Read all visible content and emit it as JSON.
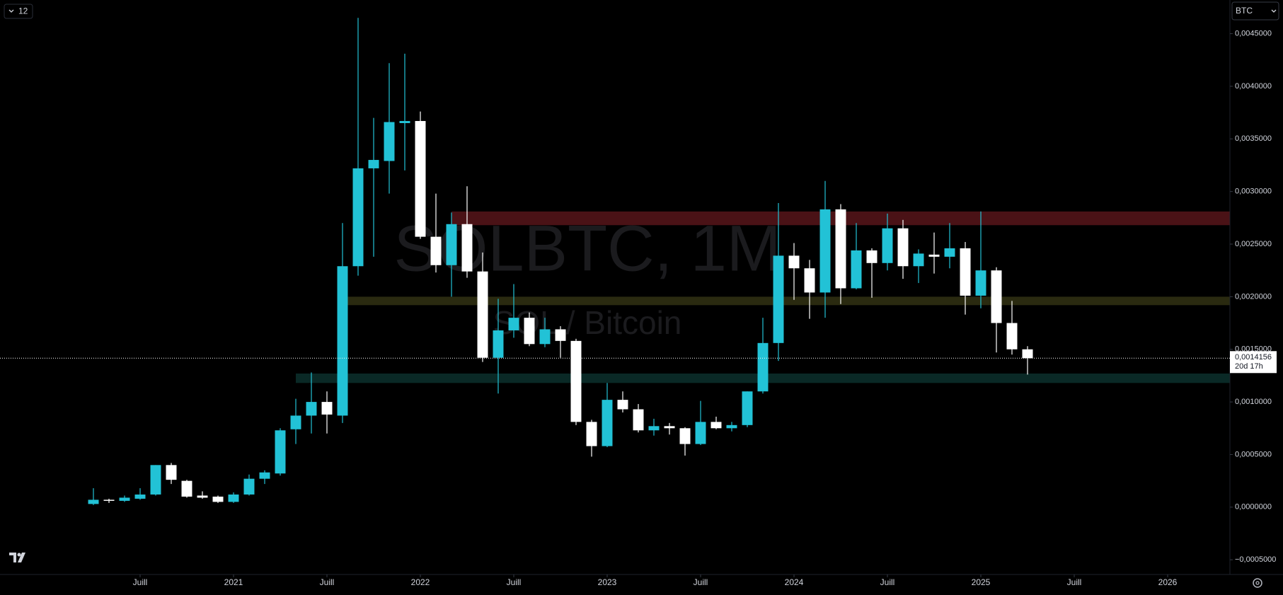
{
  "chart_data": {
    "type": "candlestick",
    "symbol": "BTC",
    "interval_button": "12",
    "watermark_title": "SOLBTC, 1M",
    "watermark_subtitle": "SOL / Bitcoin",
    "up_color": "#22c2d6",
    "down_color": "#ffffff",
    "x": [
      "2020-04",
      "2020-05",
      "2020-06",
      "2020-07",
      "2020-08",
      "2020-09",
      "2020-10",
      "2020-11",
      "2020-12",
      "2021-01",
      "2021-02",
      "2021-03",
      "2021-04",
      "2021-05",
      "2021-06",
      "2021-07",
      "2021-08",
      "2021-09",
      "2021-10",
      "2021-11",
      "2021-12",
      "2022-01",
      "2022-02",
      "2022-03",
      "2022-04",
      "2022-05",
      "2022-06",
      "2022-07",
      "2022-08",
      "2022-09",
      "2022-10",
      "2022-11",
      "2022-12",
      "2023-01",
      "2023-02",
      "2023-03",
      "2023-04",
      "2023-05",
      "2023-06",
      "2023-07",
      "2023-08",
      "2023-09",
      "2023-10",
      "2023-11",
      "2023-12",
      "2024-01",
      "2024-02",
      "2024-03",
      "2024-04",
      "2024-05",
      "2024-06",
      "2024-07",
      "2024-08",
      "2024-09",
      "2024-10",
      "2024-11",
      "2024-12",
      "2025-01",
      "2025-02",
      "2025-03",
      "2025-04"
    ],
    "open": [
      3e-05,
      7e-05,
      6e-05,
      8e-05,
      0.00012,
      0.0004,
      0.00025,
      0.00011,
      0.0001,
      5e-05,
      0.00012,
      0.00027,
      0.00032,
      0.00074,
      0.00087,
      0.001,
      0.00087,
      0.00229,
      0.00322,
      0.00329,
      0.00365,
      0.00367,
      0.00257,
      0.0023,
      0.00269,
      0.00224,
      0.00142,
      0.00168,
      0.0018,
      0.00155,
      0.00169,
      0.00158,
      0.00081,
      0.00058,
      0.00102,
      0.00093,
      0.00073,
      0.00077,
      0.00075,
      0.0006,
      0.00081,
      0.00075,
      0.00078,
      0.0011,
      0.00156,
      0.00239,
      0.00227,
      0.00204,
      0.00283,
      0.00208,
      0.00244,
      0.00232,
      0.00265,
      0.00229,
      0.0024,
      0.00238,
      0.00246,
      0.00201,
      0.00225,
      0.00175,
      0.0015
    ],
    "high": [
      0.00018,
      8e-05,
      0.00011,
      0.00018,
      0.0004,
      0.00042,
      0.00026,
      0.00015,
      0.00011,
      0.00014,
      0.00031,
      0.00035,
      0.00075,
      0.00103,
      0.00128,
      0.0011,
      0.0027,
      0.00465,
      0.0037,
      0.00422,
      0.00431,
      0.00376,
      0.00298,
      0.0028,
      0.00305,
      0.00242,
      0.00198,
      0.00212,
      0.00185,
      0.0018,
      0.00172,
      0.0016,
      0.00083,
      0.00118,
      0.0011,
      0.00098,
      0.00084,
      0.0008,
      0.00076,
      0.00101,
      0.00086,
      0.00081,
      0.0011,
      0.0018,
      0.00289,
      0.00251,
      0.00235,
      0.0031,
      0.00288,
      0.0027,
      0.00246,
      0.00279,
      0.00273,
      0.00245,
      0.00261,
      0.0027,
      0.00252,
      0.00281,
      0.00228,
      0.00196,
      0.00153
    ],
    "low": [
      2e-05,
      4e-05,
      5e-05,
      7e-05,
      0.00011,
      0.00022,
      9e-05,
      8e-05,
      4e-05,
      4e-05,
      0.00011,
      0.00022,
      0.0003,
      0.0006,
      0.0007,
      0.0007,
      0.0008,
      0.0022,
      0.00238,
      0.00298,
      0.0032,
      0.00255,
      0.00223,
      0.002,
      0.00218,
      0.00138,
      0.00108,
      0.00161,
      0.00153,
      0.00152,
      0.00142,
      0.00078,
      0.00048,
      0.00057,
      0.0009,
      0.00071,
      0.00068,
      0.00069,
      0.00049,
      0.00059,
      0.00074,
      0.00072,
      0.00076,
      0.00108,
      0.00139,
      0.00197,
      0.00179,
      0.0018,
      0.00193,
      0.00207,
      0.00199,
      0.00225,
      0.00217,
      0.00213,
      0.00222,
      0.00227,
      0.00183,
      0.00189,
      0.00147,
      0.00145,
      0.00126
    ],
    "close": [
      7e-05,
      6e-05,
      9e-05,
      0.00012,
      0.0004,
      0.00026,
      0.0001,
      9e-05,
      5e-05,
      0.00012,
      0.00027,
      0.00033,
      0.00073,
      0.00087,
      0.001,
      0.00088,
      0.00229,
      0.00322,
      0.0033,
      0.00366,
      0.00367,
      0.00257,
      0.0023,
      0.00269,
      0.00224,
      0.00142,
      0.00168,
      0.0018,
      0.00155,
      0.00169,
      0.00158,
      0.00081,
      0.00058,
      0.00102,
      0.00093,
      0.00073,
      0.00077,
      0.00075,
      0.0006,
      0.00081,
      0.00075,
      0.00078,
      0.0011,
      0.00156,
      0.00239,
      0.00227,
      0.00204,
      0.00283,
      0.00208,
      0.00244,
      0.00232,
      0.00265,
      0.00229,
      0.00241,
      0.00238,
      0.00246,
      0.00201,
      0.00225,
      0.00175,
      0.0015,
      0.0014156
    ],
    "xlim": [
      "2019-10",
      "2026-05"
    ],
    "xticks": [
      {
        "value": "2020-07",
        "label": "Juill"
      },
      {
        "value": "2021-01",
        "label": "2021"
      },
      {
        "value": "2021-07",
        "label": "Juill"
      },
      {
        "value": "2022-01",
        "label": "2022"
      },
      {
        "value": "2022-07",
        "label": "Juill"
      },
      {
        "value": "2023-01",
        "label": "2023"
      },
      {
        "value": "2023-07",
        "label": "Juill"
      },
      {
        "value": "2024-01",
        "label": "2024"
      },
      {
        "value": "2024-07",
        "label": "Juill"
      },
      {
        "value": "2025-01",
        "label": "2025"
      },
      {
        "value": "2025-07",
        "label": "Juill"
      },
      {
        "value": "2026-01",
        "label": "2026"
      }
    ],
    "ylim": [
      -0.00064,
      0.00482
    ],
    "yticks": [
      {
        "value": -0.0005,
        "label": "−0,0005000"
      },
      {
        "value": 0,
        "label": "0,0000000"
      },
      {
        "value": 0.0005,
        "label": "0,0005000"
      },
      {
        "value": 0.001,
        "label": "0,0010000"
      },
      {
        "value": 0.0015,
        "label": "0,0015000"
      },
      {
        "value": 0.002,
        "label": "0,0020000"
      },
      {
        "value": 0.0025,
        "label": "0,0025000"
      },
      {
        "value": 0.003,
        "label": "0,0030000"
      },
      {
        "value": 0.0035,
        "label": "0,0035000"
      },
      {
        "value": 0.004,
        "label": "0,0040000"
      },
      {
        "value": 0.0045,
        "label": "0,0045000"
      }
    ],
    "zones": [
      {
        "color": "#4a1216",
        "ylim": [
          0.00268,
          0.00281
        ],
        "start": "2022-03"
      },
      {
        "color": "#2a2a10",
        "ylim": [
          0.00192,
          0.002
        ],
        "start": "2021-08"
      },
      {
        "color": "#0a2926",
        "ylim": [
          0.00118,
          0.00127
        ],
        "start": "2021-05"
      }
    ],
    "last_price": {
      "value": 0.0014156,
      "label": "0,0014156",
      "countdown": "20d 17h"
    }
  }
}
